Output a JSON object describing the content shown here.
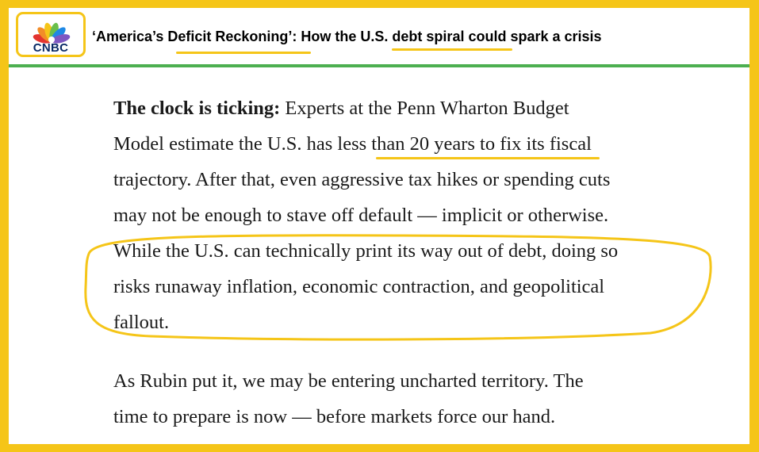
{
  "brand": {
    "logo_text": "CNBC",
    "accent": "#F5C518",
    "rule": "#4CAF50"
  },
  "headline": {
    "part1": "‘America’s ",
    "part2": "Deficit Reckoning",
    "part3": "’: How the ",
    "part4": "U.S. debt spiral",
    "part5": " could spark a crisis"
  },
  "paragraph1": {
    "lead": "The clock is ticking:",
    "line1_rest": " Experts at the Penn Wharton Budget",
    "line2a": "Model estimate the U.S. has ",
    "line2b": "less than 20 years to fix",
    "line2c": " its fiscal",
    "line3": "trajectory. After that, even aggressive tax hikes or spending cuts",
    "line4": "may not be enough to stave off default — implicit or otherwise.",
    "line5": "While the U.S. can technically print its way out of debt, doing so",
    "line6": "risks runaway inflation, economic contraction, and geopolitical",
    "line7": "fallout."
  },
  "paragraph2": {
    "line1": "As Rubin put it, we may be entering uncharted territory. The",
    "line2": "time to prepare is now — before markets force our hand."
  }
}
